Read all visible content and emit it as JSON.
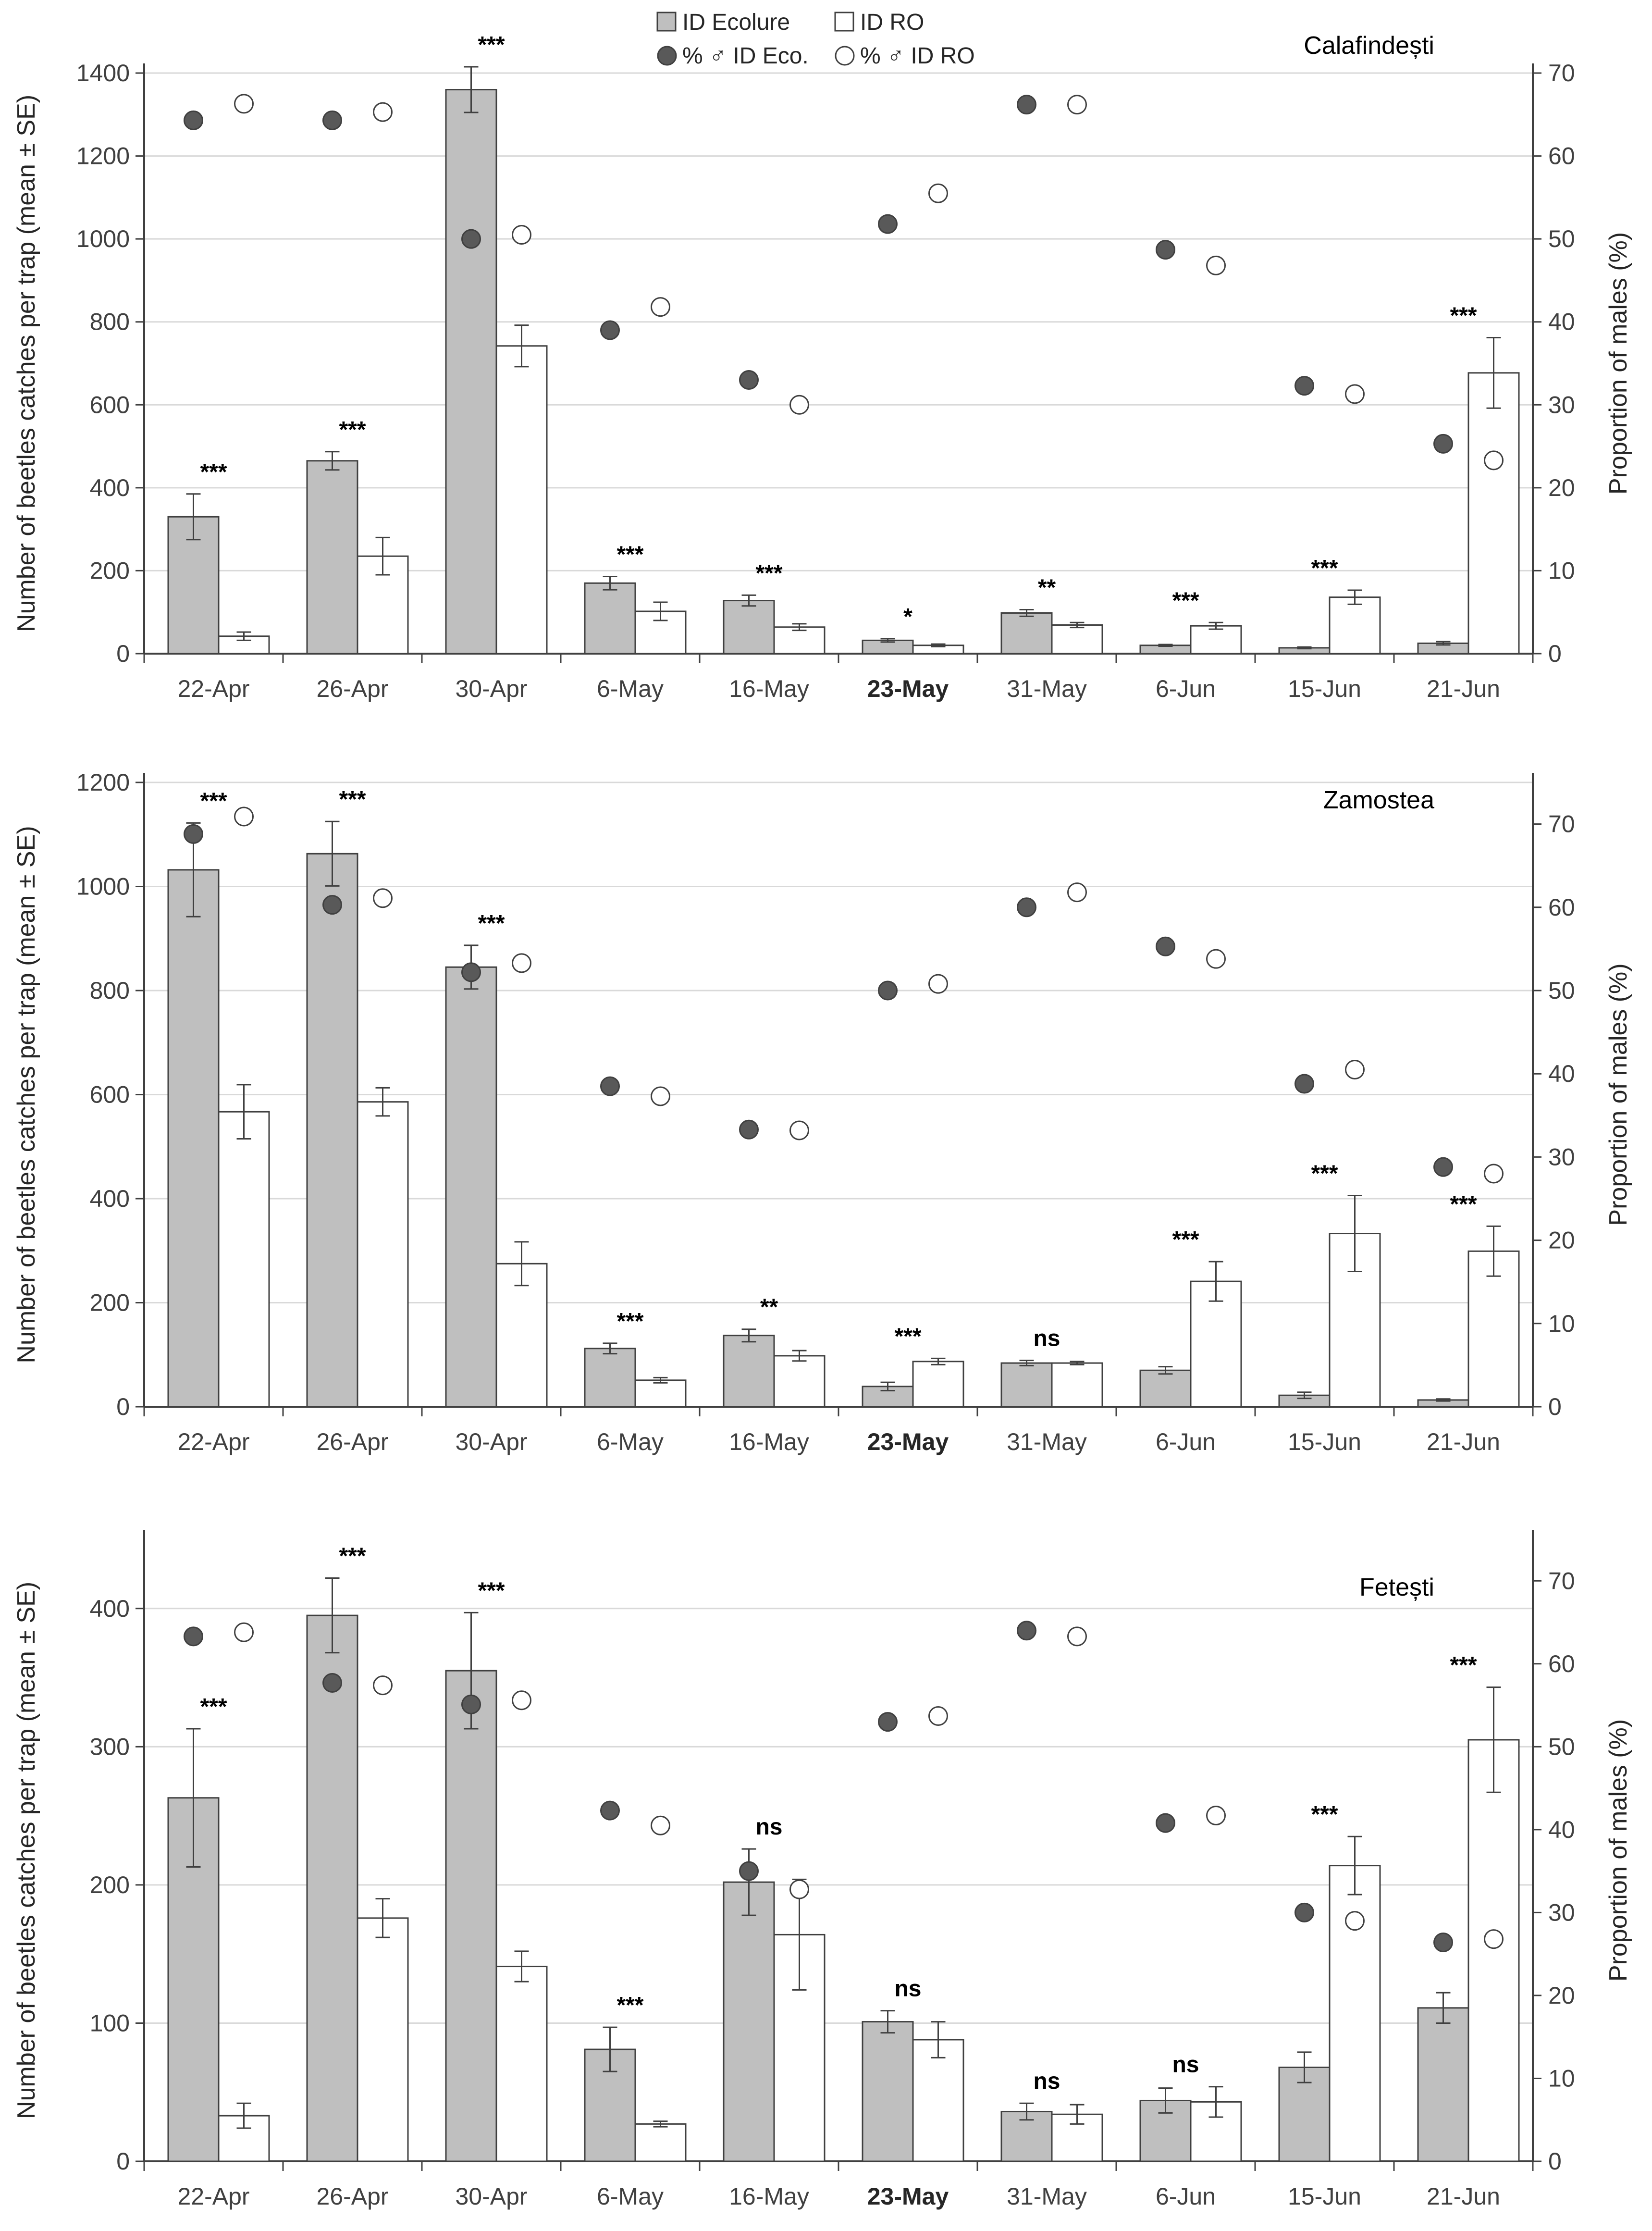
{
  "legend": {
    "ecolure": "ID Ecolure",
    "ro": "ID RO",
    "pct_eco": "% ♂ ID Eco.",
    "pct_ro": "% ♂ ID RO"
  },
  "colors": {
    "ecolure_fill": "#bfbfbf",
    "ro_fill": "#ffffff",
    "pct_eco_marker": "#595959",
    "pct_ro_marker": "#ffffff",
    "outline": "#404040",
    "grid": "#d9d9d9"
  },
  "chart_data": [
    {
      "type": "bar",
      "site": "Calafindești",
      "categories": [
        "22-Apr",
        "26-Apr",
        "30-Apr",
        "6-May",
        "16-May",
        "23-May",
        "31-May",
        "6-Jun",
        "15-Jun",
        "21-Jun"
      ],
      "highlight_category": "23-May",
      "ylabel": "Number of beetles catches per trap (mean ± SE)",
      "y2label": "Proportion of males (%)",
      "ylim": [
        0,
        1400
      ],
      "yticks": [
        0,
        200,
        400,
        600,
        800,
        1000,
        1200,
        1400
      ],
      "y2lim": [
        0,
        70
      ],
      "y2ticks": [
        0,
        10,
        20,
        30,
        40,
        50,
        60,
        70
      ],
      "series": [
        {
          "name": "ID Ecolure",
          "values": [
            330,
            465,
            1360,
            170,
            128,
            32,
            98,
            20,
            14,
            25
          ],
          "se": [
            55,
            22,
            55,
            16,
            13,
            4,
            8,
            2,
            2,
            4
          ]
        },
        {
          "name": "ID RO",
          "values": [
            42,
            235,
            742,
            102,
            64,
            20,
            69,
            67,
            136,
            677
          ],
          "se": [
            10,
            45,
            50,
            22,
            8,
            3,
            6,
            8,
            17,
            85
          ]
        }
      ],
      "males_pct": [
        {
          "name": "% ♂ ID Eco.",
          "values": [
            64.3,
            64.3,
            50.0,
            39.0,
            33.0,
            51.8,
            66.2,
            48.7,
            32.3,
            25.3
          ]
        },
        {
          "name": "% ♂ ID RO",
          "values": [
            66.3,
            65.3,
            50.5,
            41.8,
            30.0,
            55.5,
            66.2,
            46.8,
            31.3,
            23.3
          ]
        }
      ],
      "significance": [
        "***",
        "***",
        "***",
        "***",
        "***",
        "*",
        "**",
        "***",
        "***",
        "***"
      ]
    },
    {
      "type": "bar",
      "site": "Zamostea",
      "categories": [
        "22-Apr",
        "26-Apr",
        "30-Apr",
        "6-May",
        "16-May",
        "23-May",
        "31-May",
        "6-Jun",
        "15-Jun",
        "21-Jun"
      ],
      "highlight_category": "23-May",
      "ylabel": "Number of beetles catches per trap (mean ± SE)",
      "y2label": "Proportion of males (%)",
      "ylim": [
        0,
        1200
      ],
      "yticks": [
        0,
        200,
        400,
        600,
        800,
        1000,
        1200
      ],
      "y2lim": [
        0,
        75
      ],
      "y2ticks": [
        0,
        10,
        20,
        30,
        40,
        50,
        60,
        70
      ],
      "series": [
        {
          "name": "ID Ecolure",
          "values": [
            1032,
            1063,
            845,
            112,
            137,
            39,
            84,
            70,
            22,
            13
          ],
          "se": [
            90,
            62,
            42,
            10,
            12,
            8,
            5,
            7,
            6,
            2
          ]
        },
        {
          "name": "ID RO",
          "values": [
            567,
            586,
            275,
            51,
            98,
            87,
            84,
            241,
            333,
            299
          ],
          "se": [
            52,
            27,
            42,
            5,
            10,
            6,
            3,
            38,
            73,
            48
          ]
        }
      ],
      "males_pct": [
        {
          "name": "% ♂ ID Eco.",
          "values": [
            68.8,
            60.3,
            52.2,
            38.5,
            33.3,
            50.0,
            60.0,
            55.3,
            38.8,
            28.8
          ]
        },
        {
          "name": "% ♂ ID RO",
          "values": [
            70.9,
            61.1,
            53.3,
            37.3,
            33.2,
            50.8,
            61.8,
            53.8,
            40.5,
            28.0
          ]
        }
      ],
      "significance": [
        "***",
        "***",
        "***",
        "***",
        "**",
        "***",
        "ns",
        "***",
        "***",
        "***"
      ]
    },
    {
      "type": "bar",
      "site": "Fetești",
      "categories": [
        "22-Apr",
        "26-Apr",
        "30-Apr",
        "6-May",
        "16-May",
        "23-May",
        "31-May",
        "6-Jun",
        "15-Jun",
        "21-Jun"
      ],
      "highlight_category": "23-May",
      "ylabel": "Number of beetles catches per trap (mean ± SE)",
      "y2label": "Proportion of males (%)",
      "ylim": [
        0,
        450
      ],
      "yticks": [
        0,
        100,
        200,
        300,
        400
      ],
      "y2lim": [
        0,
        75
      ],
      "y2ticks": [
        0,
        10,
        20,
        30,
        40,
        50,
        60,
        70
      ],
      "series": [
        {
          "name": "ID Ecolure",
          "values": [
            263,
            395,
            355,
            81,
            202,
            101,
            36,
            44,
            68,
            111
          ],
          "se": [
            50,
            27,
            42,
            16,
            24,
            8,
            6,
            9,
            11,
            11
          ]
        },
        {
          "name": "ID RO",
          "values": [
            33,
            176,
            141,
            27,
            164,
            88,
            34,
            43,
            214,
            305
          ],
          "se": [
            9,
            14,
            11,
            2,
            40,
            13,
            7,
            11,
            21,
            38
          ]
        }
      ],
      "males_pct": [
        {
          "name": "% ♂ ID Eco.",
          "values": [
            63.3,
            57.7,
            55.1,
            42.3,
            35.0,
            53.0,
            64.0,
            40.8,
            30.0,
            26.4
          ]
        },
        {
          "name": "% ♂ ID RO",
          "values": [
            63.8,
            57.4,
            55.6,
            40.5,
            32.8,
            53.7,
            63.3,
            41.7,
            29.0,
            26.8
          ]
        }
      ],
      "significance": [
        "***",
        "***",
        "***",
        "***",
        "ns",
        "ns",
        "ns",
        "ns",
        "***",
        "***"
      ]
    }
  ]
}
